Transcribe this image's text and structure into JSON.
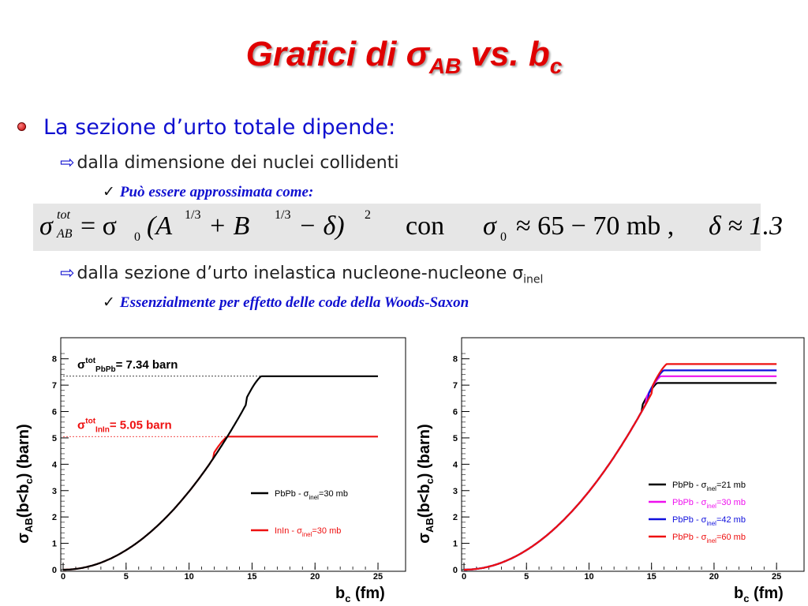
{
  "slide": {
    "title_main": "Grafici di ",
    "title_sigma": "σ",
    "title_sigma_sub": "AB",
    "title_mid": " vs. b",
    "title_b_sub": "c",
    "bullet": "La sezione d’urto totale dipende:",
    "sub1": "dalla dimensione dei nuclei collidenti",
    "check1": "Può essere approssimata come:",
    "formula": {
      "lhs_sup": "tot",
      "lhs_sub": "AB",
      "eq": "= σ",
      "sub0": "0",
      "paren": "(A",
      "exp1": "1/3",
      "plus": " + B",
      "exp2": "1/3",
      "minus": " − δ)",
      "exp3": "2",
      "con": "con",
      "sigma0": "σ",
      "sigma0_sub": "0",
      "approx1": "≈ 65 − 70 mb ,",
      "delta": "δ ≈ 1.3"
    },
    "sub2": "dalla sezione d’urto inelastica nucleone-nucleone σ",
    "sub2_sub": "inel",
    "check2": "Essenzialmente per effetto delle code della Woods-Saxon"
  },
  "chart_data": [
    {
      "type": "line",
      "xlabel": "b_c (fm)",
      "ylabel": "σ_AB(b<b_c) (barn)",
      "xlim": [
        0,
        26
      ],
      "ylim": [
        0,
        8.5
      ],
      "xticks": [
        0,
        5,
        10,
        15,
        20,
        25
      ],
      "yticks": [
        0,
        1,
        2,
        3,
        4,
        5,
        6,
        7,
        8
      ],
      "annotations": [
        {
          "sigma": "σ",
          "sup": "tot",
          "sub": "PbPb",
          "text": "= 7.34 barn",
          "color": "#000000",
          "y": 7.34
        },
        {
          "sigma": "σ",
          "sup": "tot",
          "sub": "InIn",
          "text": "= 5.05 barn",
          "color": "#ee1010",
          "y": 5.05
        }
      ],
      "series": [
        {
          "name": "PbPb - σ",
          "name_sub": "inel",
          "name_rest": "=30 mb",
          "color": "#000000",
          "plateau": 7.34,
          "bmax": 25
        },
        {
          "name": "InIn - σ",
          "name_sub": "inel",
          "name_rest": "=30 mb",
          "color": "#ee1010",
          "plateau": 5.05,
          "bmax": 25
        }
      ]
    },
    {
      "type": "line",
      "xlabel": "b_c (fm)",
      "ylabel": "σ_AB(b<b_c) (barn)",
      "xlim": [
        0,
        26
      ],
      "ylim": [
        0,
        8.5
      ],
      "xticks": [
        0,
        5,
        10,
        15,
        20,
        25
      ],
      "yticks": [
        0,
        1,
        2,
        3,
        4,
        5,
        6,
        7,
        8
      ],
      "series": [
        {
          "name": "PbPb - σ",
          "name_sub": "inel",
          "name_rest": "=21 mb",
          "color": "#000000",
          "plateau": 7.08,
          "bmax": 25
        },
        {
          "name": "PbPb - σ",
          "name_sub": "inel",
          "name_rest": "=30 mb",
          "color": "#ee10ee",
          "plateau": 7.34,
          "bmax": 25
        },
        {
          "name": "PbPb - σ",
          "name_sub": "inel",
          "name_rest": "=42 mb",
          "color": "#1010dd",
          "plateau": 7.56,
          "bmax": 25
        },
        {
          "name": "PbPb - σ",
          "name_sub": "inel",
          "name_rest": "=60 mb",
          "color": "#ee1010",
          "plateau": 7.8,
          "bmax": 25
        }
      ]
    }
  ]
}
